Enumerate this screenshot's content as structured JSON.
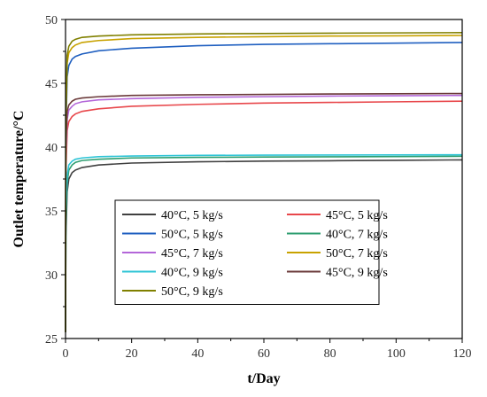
{
  "chart_data": {
    "type": "line",
    "xlabel": "t/Day",
    "ylabel": "Outlet temperature/°C",
    "xlim": [
      0,
      120
    ],
    "ylim": [
      25,
      50
    ],
    "xticks": [
      0,
      20,
      40,
      60,
      80,
      100,
      120
    ],
    "yticks": [
      25,
      30,
      35,
      40,
      45,
      50
    ],
    "grid": false,
    "legend_position": "lower-center",
    "series": [
      {
        "name": "40°C, 5 kg/s",
        "color": "#404040",
        "x": [
          0,
          0.1,
          0.5,
          1,
          2,
          3,
          5,
          10,
          20,
          40,
          60,
          80,
          100,
          120
        ],
        "y": [
          25.5,
          33,
          36.5,
          37.5,
          38.0,
          38.2,
          38.4,
          38.6,
          38.75,
          38.85,
          38.9,
          38.93,
          38.96,
          39.0
        ]
      },
      {
        "name": "45°C, 5 kg/s",
        "color": "#e8474b",
        "x": [
          0,
          0.1,
          0.5,
          1,
          2,
          3,
          5,
          10,
          20,
          40,
          60,
          80,
          100,
          120
        ],
        "y": [
          25.5,
          38,
          41.3,
          42.0,
          42.4,
          42.6,
          42.8,
          43.0,
          43.2,
          43.35,
          43.45,
          43.5,
          43.55,
          43.6
        ]
      },
      {
        "name": "50°C, 5 kg/s",
        "color": "#1f5fc0",
        "x": [
          0,
          0.1,
          0.5,
          1,
          2,
          3,
          5,
          10,
          20,
          40,
          60,
          80,
          100,
          120
        ],
        "y": [
          25.5,
          41,
          45.5,
          46.4,
          46.9,
          47.1,
          47.3,
          47.55,
          47.75,
          47.95,
          48.05,
          48.1,
          48.15,
          48.2
        ]
      },
      {
        "name": "40°C, 7 kg/s",
        "color": "#2e9e70",
        "x": [
          0,
          0.1,
          0.5,
          1,
          2,
          3,
          5,
          10,
          20,
          40,
          60,
          80,
          100,
          120
        ],
        "y": [
          25.5,
          34,
          37.2,
          38.2,
          38.6,
          38.8,
          38.95,
          39.05,
          39.15,
          39.2,
          39.22,
          39.24,
          39.26,
          39.28
        ]
      },
      {
        "name": "45°C, 7 kg/s",
        "color": "#b366d9",
        "x": [
          0,
          0.1,
          0.5,
          1,
          2,
          3,
          5,
          10,
          20,
          40,
          60,
          80,
          100,
          120
        ],
        "y": [
          25.5,
          39,
          42.2,
          42.9,
          43.2,
          43.4,
          43.55,
          43.7,
          43.8,
          43.9,
          43.95,
          44.0,
          44.02,
          44.05
        ]
      },
      {
        "name": "50°C, 7 kg/s",
        "color": "#c8a200",
        "x": [
          0,
          0.1,
          0.5,
          1,
          2,
          3,
          5,
          10,
          20,
          40,
          60,
          80,
          100,
          120
        ],
        "y": [
          25.5,
          42,
          46.6,
          47.4,
          47.8,
          48.0,
          48.2,
          48.35,
          48.5,
          48.6,
          48.65,
          48.7,
          48.72,
          48.75
        ]
      },
      {
        "name": "40°C, 9 kg/s",
        "color": "#2ec4d6",
        "x": [
          0,
          0.1,
          0.5,
          1,
          2,
          3,
          5,
          10,
          20,
          40,
          60,
          80,
          100,
          120
        ],
        "y": [
          25.5,
          35,
          37.8,
          38.6,
          38.9,
          39.05,
          39.15,
          39.25,
          39.3,
          39.35,
          39.37,
          39.38,
          39.39,
          39.4
        ]
      },
      {
        "name": "45°C, 9 kg/s",
        "color": "#6b3a3a",
        "x": [
          0,
          0.1,
          0.5,
          1,
          2,
          3,
          5,
          10,
          20,
          40,
          60,
          80,
          100,
          120
        ],
        "y": [
          25.5,
          40,
          42.8,
          43.3,
          43.6,
          43.75,
          43.85,
          43.95,
          44.05,
          44.1,
          44.13,
          44.16,
          44.18,
          44.2
        ]
      },
      {
        "name": "50°C, 9 kg/s",
        "color": "#808000",
        "x": [
          0,
          0.1,
          0.5,
          1,
          2,
          3,
          5,
          10,
          20,
          40,
          60,
          80,
          100,
          120
        ],
        "y": [
          25.5,
          43,
          47.2,
          47.9,
          48.3,
          48.45,
          48.6,
          48.7,
          48.8,
          48.87,
          48.9,
          48.93,
          48.95,
          48.97
        ]
      }
    ]
  }
}
